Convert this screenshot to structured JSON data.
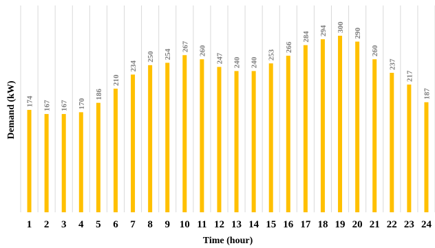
{
  "chart_data": {
    "type": "bar",
    "title": "",
    "xlabel": "Time (hour)",
    "ylabel": "Demand (kW)",
    "categories": [
      "1",
      "2",
      "3",
      "4",
      "5",
      "6",
      "7",
      "8",
      "9",
      "10",
      "11",
      "12",
      "13",
      "14",
      "15",
      "16",
      "17",
      "18",
      "19",
      "20",
      "21",
      "22",
      "23",
      "24"
    ],
    "values": [
      174,
      167,
      167,
      170,
      186,
      210,
      234,
      250,
      254,
      267,
      260,
      247,
      240,
      240,
      253,
      266,
      284,
      294,
      300,
      290,
      260,
      237,
      217,
      187
    ],
    "ylim": [
      0,
      300
    ],
    "grid": "vertical",
    "data_labels": true,
    "legend": "none",
    "bar_color": "#FFC000",
    "grid_color": "#D9D9D9"
  }
}
